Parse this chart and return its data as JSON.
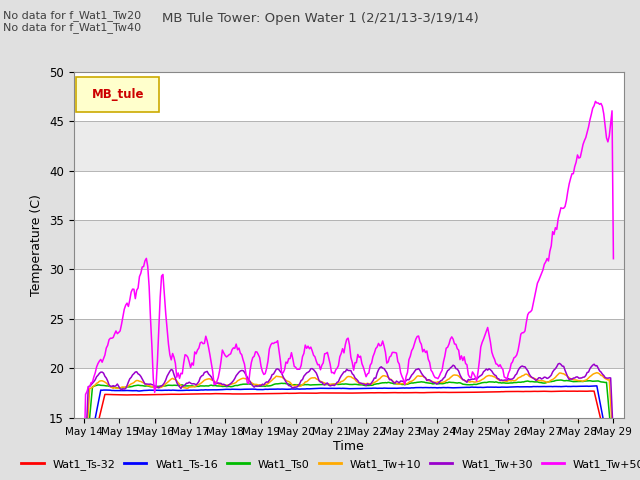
{
  "title": "MB Tule Tower: Open Water 1 (2/21/13-3/19/14)",
  "subtitle1": "No data for f_Wat1_Tw20",
  "subtitle2": "No data for f_Wat1_Tw40",
  "ylabel": "Temperature (C)",
  "xlabel": "Time",
  "ylim": [
    15,
    50
  ],
  "yticks": [
    15,
    20,
    25,
    30,
    35,
    40,
    45,
    50
  ],
  "bg_color": "#e0e0e0",
  "band_light": "#ebebeb",
  "band_dark": "#d8d8d8",
  "legend_label": "MB_tule",
  "legend_bg": "#ffffcc",
  "legend_edge": "#ccaa00",
  "legend_text": "#cc0000",
  "title_color": "#404040",
  "subtitle_color": "#404040",
  "series_colors": {
    "Wat1_Ts-32": "#ff0000",
    "Wat1_Ts-16": "#0000ff",
    "Wat1_Ts0": "#00bb00",
    "Wat1_Tw+10": "#ffaa00",
    "Wat1_Tw+30": "#9900cc",
    "Wat1_Tw+50": "#ff00ff"
  },
  "xtick_labels": [
    "May 14",
    "May 15",
    "May 16",
    "May 17",
    "May 18",
    "May 19",
    "May 20",
    "May 21",
    "May 22",
    "May 23",
    "May 24",
    "May 25",
    "May 26",
    "May 27",
    "May 28",
    "May 29"
  ]
}
